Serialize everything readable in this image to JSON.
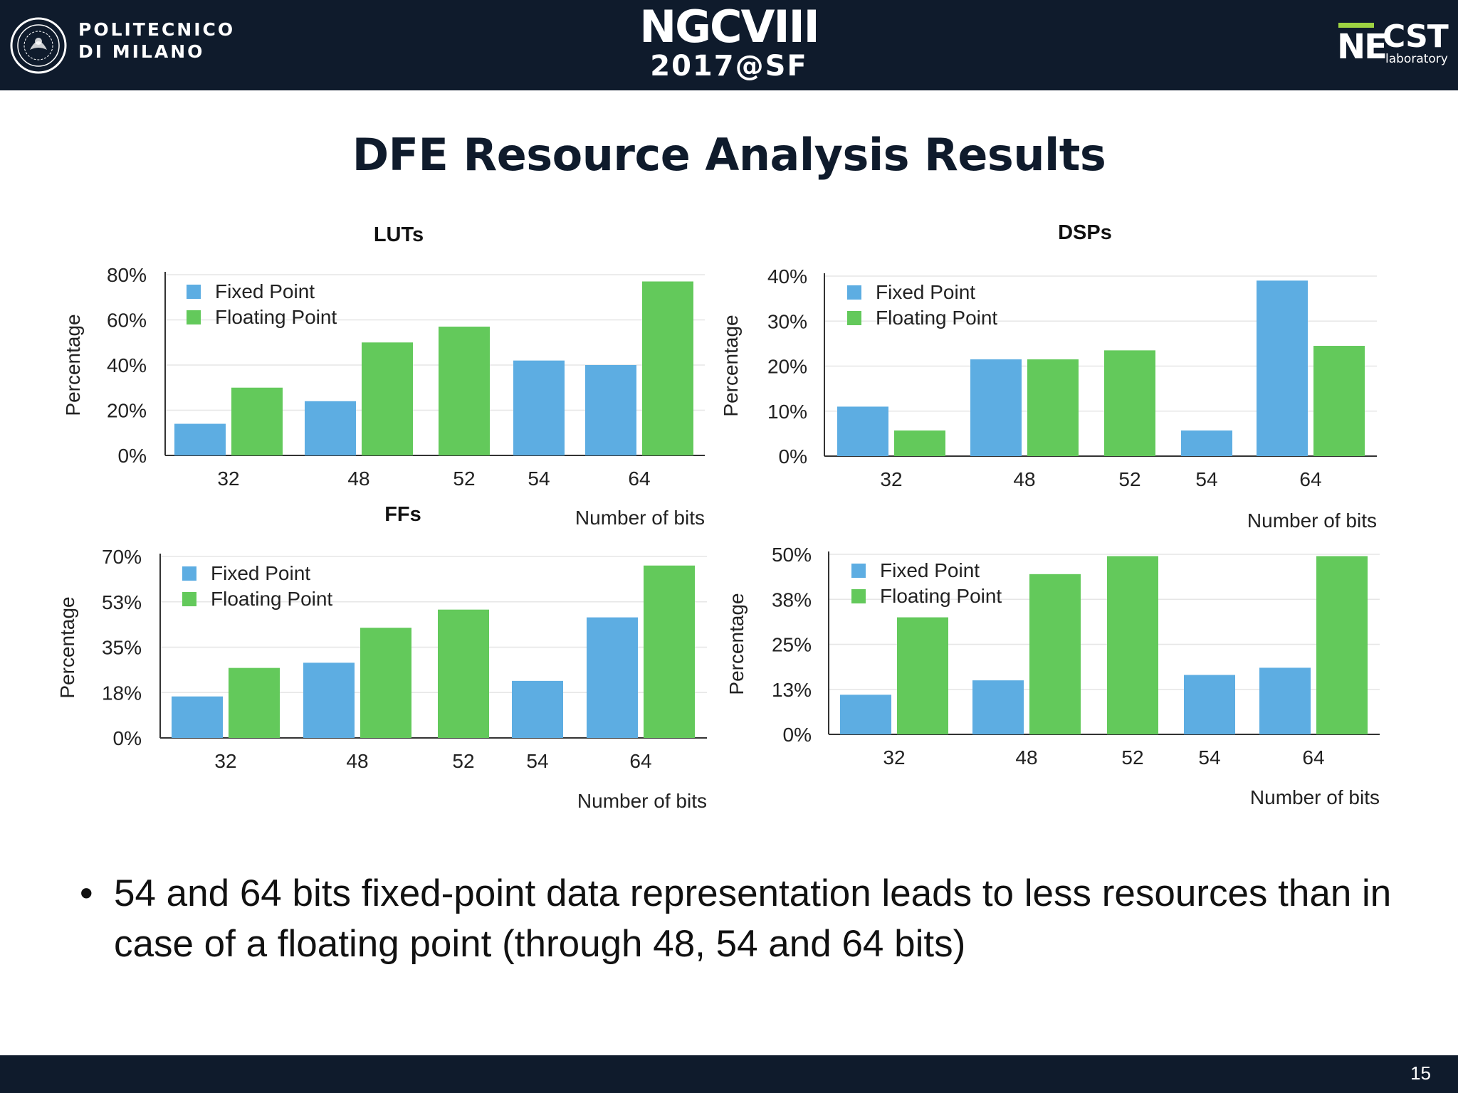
{
  "header": {
    "university_line1": "POLITECNICO",
    "university_line2": "DI MILANO",
    "conference_line1": "NGCVIII",
    "conference_line2": "2017@SF",
    "lab_ne": "NE",
    "lab_cst": "CST",
    "lab_sub": "laboratory"
  },
  "slide": {
    "title": "DFE Resource Analysis Results",
    "bullet_symbol": "•",
    "bullet": "54 and 64 bits fixed-point data representation leads to less resources than in case of a floating point (through 48, 54 and 64 bits)",
    "page_number": "15"
  },
  "colors": {
    "fixed": "#5dade2",
    "floating": "#63c95b",
    "header_bg": "#0f1b2c"
  },
  "chart_data": [
    {
      "type": "bar",
      "title": "LUTs",
      "xlabel": "Number of bits",
      "ylabel": "Percentage",
      "categories": [
        "32",
        "48",
        "52",
        "54",
        "64"
      ],
      "series": [
        {
          "name": "Fixed Point",
          "values": [
            14,
            24,
            null,
            42,
            40
          ]
        },
        {
          "name": "Floating Point",
          "values": [
            30,
            50,
            57,
            null,
            77
          ]
        }
      ],
      "yticks": [
        "0%",
        "20%",
        "40%",
        "60%",
        "80%"
      ],
      "ylim": [
        0,
        80
      ],
      "legend": "top-left",
      "grid": true
    },
    {
      "type": "bar",
      "title": "DSPs",
      "xlabel": "Number of bits",
      "ylabel": "Percentage",
      "categories": [
        "32",
        "48",
        "52",
        "54",
        "64"
      ],
      "series": [
        {
          "name": "Fixed Point",
          "values": [
            11,
            21.5,
            null,
            5.7,
            39
          ]
        },
        {
          "name": "Floating Point",
          "values": [
            5.7,
            21.5,
            23.5,
            null,
            24.5
          ]
        }
      ],
      "yticks": [
        "0%",
        "10%",
        "20%",
        "30%",
        "40%"
      ],
      "ylim": [
        0,
        40
      ],
      "legend": "top-left",
      "grid": true
    },
    {
      "type": "bar",
      "title": "FFs",
      "xlabel": "Number of bits",
      "ylabel": "Percentage",
      "categories": [
        "32",
        "48",
        "52",
        "54",
        "64"
      ],
      "series": [
        {
          "name": "Fixed Point",
          "values": [
            16,
            29,
            null,
            22,
            46.5
          ]
        },
        {
          "name": "Floating Point",
          "values": [
            27,
            42.5,
            49.5,
            null,
            66.5
          ]
        }
      ],
      "yticks": [
        "0%",
        "18%",
        "35%",
        "53%",
        "70%"
      ],
      "ylim": [
        0,
        70
      ],
      "legend": "top-left",
      "grid": true
    },
    {
      "type": "bar",
      "title": "",
      "xlabel": "Number of bits",
      "ylabel": "Percentage",
      "categories": [
        "32",
        "48",
        "52",
        "54",
        "64"
      ],
      "series": [
        {
          "name": "Fixed Point",
          "values": [
            11,
            15,
            null,
            16.5,
            18.5
          ]
        },
        {
          "name": "Floating Point",
          "values": [
            32.5,
            44.5,
            49.5,
            null,
            49.5
          ]
        }
      ],
      "yticks": [
        "0%",
        "13%",
        "25%",
        "38%",
        "50%"
      ],
      "ylim": [
        0,
        50
      ],
      "legend": "top-left",
      "grid": true
    }
  ]
}
